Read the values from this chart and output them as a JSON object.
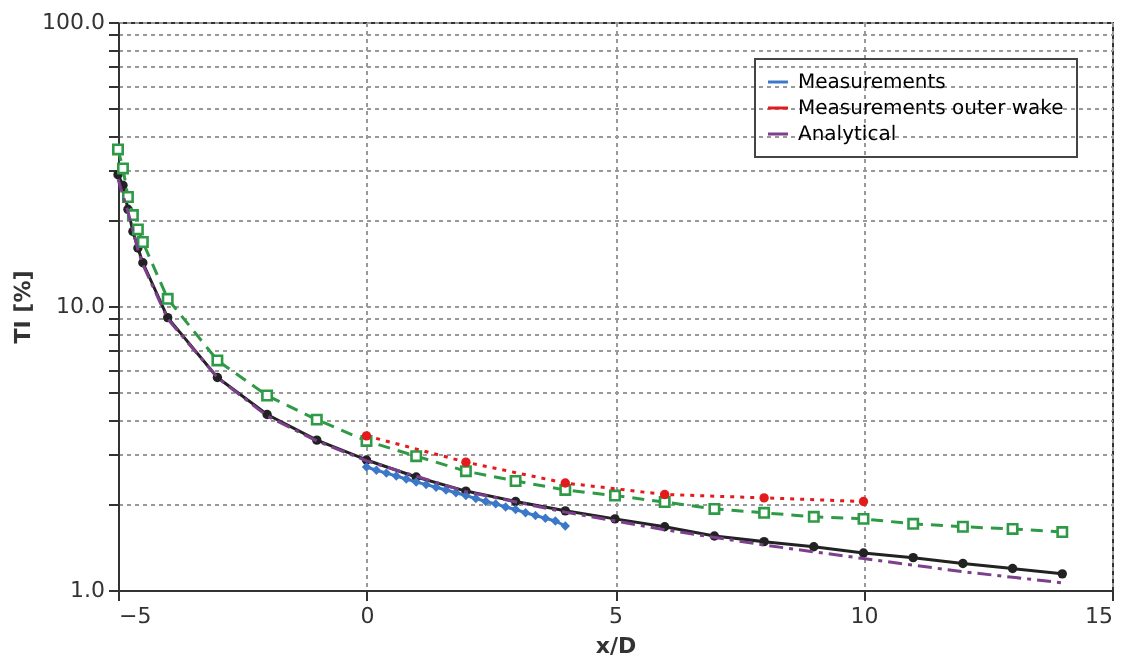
{
  "chart_data": {
    "type": "line",
    "xlabel": "x/D",
    "ylabel": "TI [%]",
    "log": "y",
    "grid": true,
    "legend": "top right",
    "xlim": [
      -5,
      15
    ],
    "xticks": [
      -5,
      0,
      5,
      10,
      15
    ],
    "ylim": [
      1,
      100
    ],
    "yticks": [
      {
        "value": 1,
        "label": "1.0"
      },
      {
        "value": 2,
        "label": null
      },
      {
        "value": 3,
        "label": null
      },
      {
        "value": 4,
        "label": null
      },
      {
        "value": 5,
        "label": null
      },
      {
        "value": 6,
        "label": null
      },
      {
        "value": 7,
        "label": null
      },
      {
        "value": 8,
        "label": null
      },
      {
        "value": 9,
        "label": null
      },
      {
        "value": 10,
        "label": "10.0"
      },
      {
        "value": 20,
        "label": null
      },
      {
        "value": 30,
        "label": null
      },
      {
        "value": 40,
        "label": null
      },
      {
        "value": 50,
        "label": null
      },
      {
        "value": 60,
        "label": null
      },
      {
        "value": 70,
        "label": null
      },
      {
        "value": 80,
        "label": null
      },
      {
        "value": 90,
        "label": null
      },
      {
        "value": 100,
        "label": "100.0"
      }
    ],
    "series": [
      {
        "color": "#222222",
        "marker": "circle",
        "line_style": "solid",
        "x": [
          -5,
          -4.9,
          -4.8,
          -4.7,
          -4.6,
          -4.5,
          -4,
          -3,
          -2,
          -1,
          0,
          1,
          2,
          3,
          4,
          5,
          6,
          7,
          8,
          9,
          10,
          11,
          12,
          13,
          14
        ],
        "values": [
          29,
          26.6,
          21.9,
          18.3,
          16,
          14.2,
          9.1,
          5.6,
          4.15,
          3.37,
          2.87,
          2.5,
          2.23,
          2.05,
          1.9,
          1.78,
          1.67,
          1.55,
          1.48,
          1.42,
          1.35,
          1.3,
          1.24,
          1.19,
          1.14
        ]
      },
      {
        "color": "#2e9a46",
        "marker": "square",
        "line_style": "dashed",
        "x": [
          -5,
          -4.9,
          -4.8,
          -4.7,
          -4.6,
          -4.5,
          -4,
          -3,
          -2,
          -1,
          0,
          1,
          2,
          3,
          4,
          5,
          6,
          7,
          8,
          9,
          10,
          11,
          12,
          13,
          14
        ],
        "values": [
          35.6,
          30.5,
          24.2,
          20.9,
          18.6,
          16.8,
          10.6,
          6.43,
          4.84,
          3.98,
          3.35,
          2.96,
          2.62,
          2.42,
          2.25,
          2.15,
          2.04,
          1.93,
          1.87,
          1.81,
          1.78,
          1.71,
          1.67,
          1.64,
          1.6
        ]
      },
      {
        "name": "Measurements",
        "color": "#3c78c8",
        "marker": "diamond",
        "line_style": "solid",
        "x": [
          0,
          0.2,
          0.4,
          0.6,
          0.8,
          1,
          1.2,
          1.4,
          1.6,
          1.8,
          2,
          2.2,
          2.4,
          2.6,
          2.8,
          3,
          3.2,
          3.4,
          3.6,
          3.8,
          4
        ],
        "values": [
          2.71,
          2.64,
          2.58,
          2.52,
          2.46,
          2.4,
          2.35,
          2.3,
          2.25,
          2.2,
          2.15,
          2.1,
          2.05,
          2.01,
          1.96,
          1.92,
          1.87,
          1.83,
          1.79,
          1.75,
          1.68
        ]
      },
      {
        "name": "Measurements outer wake",
        "color": "#e41a1c",
        "marker": "circle",
        "line_style": "dotted",
        "x": [
          0,
          2,
          4,
          6,
          8,
          10
        ],
        "values": [
          3.49,
          2.82,
          2.38,
          2.17,
          2.11,
          2.05
        ]
      },
      {
        "name": "Analytical",
        "color": "#7b3f8c",
        "marker": "none",
        "line_style": "dashdot",
        "x": [
          -5,
          -4.8,
          -4.6,
          -4.5,
          -4,
          -3,
          -2,
          -1,
          0,
          2,
          4,
          6,
          8,
          10,
          12,
          14
        ],
        "values": [
          28,
          21.5,
          15.8,
          14,
          9,
          5.6,
          4.1,
          3.35,
          2.85,
          2.22,
          1.88,
          1.63,
          1.44,
          1.29,
          1.16,
          1.06
        ]
      }
    ]
  }
}
